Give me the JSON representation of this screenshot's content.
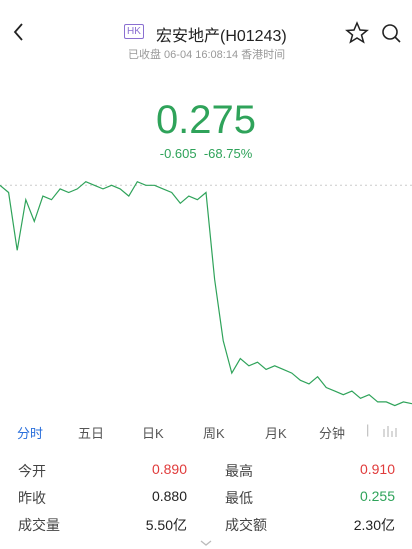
{
  "header": {
    "badge": "HK",
    "title": "宏安地产(H01243)",
    "status": "已收盘 06-04 16:08:14 香港时间"
  },
  "quote": {
    "price": "0.275",
    "change": "-0.605",
    "change_pct": "-68.75%"
  },
  "chart_data": {
    "type": "line",
    "color": "#2fa35a",
    "baseline": 0.88,
    "ylim": [
      0.23,
      0.95
    ],
    "values": [
      0.88,
      0.86,
      0.7,
      0.84,
      0.78,
      0.85,
      0.84,
      0.87,
      0.86,
      0.87,
      0.89,
      0.88,
      0.87,
      0.88,
      0.87,
      0.85,
      0.89,
      0.88,
      0.88,
      0.87,
      0.86,
      0.83,
      0.85,
      0.84,
      0.86,
      0.62,
      0.45,
      0.36,
      0.4,
      0.38,
      0.39,
      0.37,
      0.38,
      0.37,
      0.36,
      0.34,
      0.33,
      0.35,
      0.32,
      0.31,
      0.3,
      0.31,
      0.29,
      0.3,
      0.28,
      0.28,
      0.27,
      0.28,
      0.275
    ]
  },
  "tabs": [
    "分时",
    "五日",
    "日K",
    "周K",
    "月K",
    "分钟"
  ],
  "stats": [
    [
      {
        "label": "今开",
        "value": "0.890"
      },
      {
        "label": "最高",
        "value": "0.910"
      }
    ],
    [
      {
        "label": "昨收",
        "value": "0.880"
      },
      {
        "label": "最低",
        "value": "0.255"
      }
    ],
    [
      {
        "label": "成交量",
        "value": "5.50亿"
      },
      {
        "label": "成交额",
        "value": "2.30亿"
      }
    ]
  ]
}
